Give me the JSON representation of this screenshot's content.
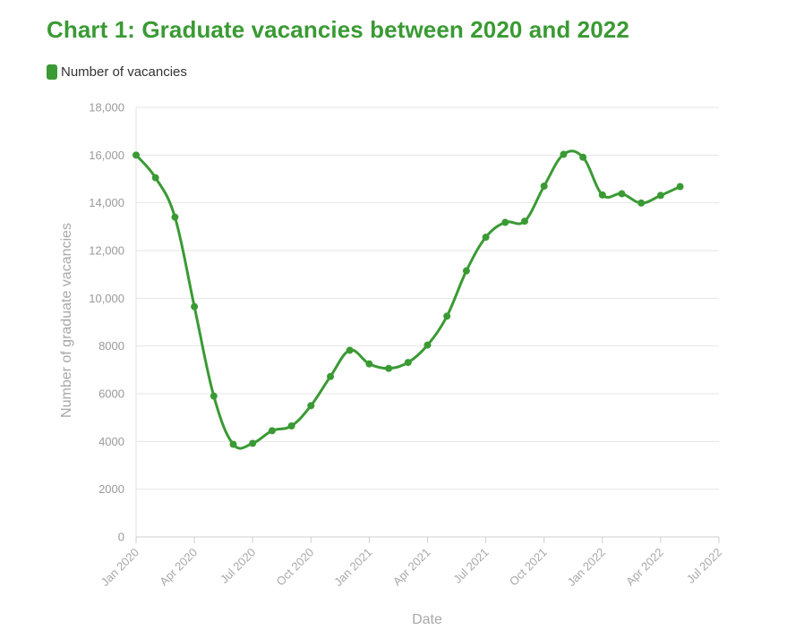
{
  "chart_data": {
    "type": "line",
    "title": "Chart 1: Graduate vacancies between 2020 and 2022",
    "xlabel": "Date",
    "ylabel": "Number of graduate vacancies",
    "ylim": [
      0,
      18000
    ],
    "xlim": [
      "2020-01",
      "2022-07"
    ],
    "grid": true,
    "legend_position": "top-left",
    "series": [
      {
        "name": "Number of vacancies",
        "color": "#3a9a34",
        "x": [
          "2020-01",
          "2020-02",
          "2020-03",
          "2020-04",
          "2020-05",
          "2020-06",
          "2020-07",
          "2020-08",
          "2020-09",
          "2020-10",
          "2020-11",
          "2020-12",
          "2021-01",
          "2021-02",
          "2021-03",
          "2021-04",
          "2021-05",
          "2021-06",
          "2021-07",
          "2021-08",
          "2021-09",
          "2021-10",
          "2021-11",
          "2021-12",
          "2022-01",
          "2022-02",
          "2022-03",
          "2022-04",
          "2022-05"
        ],
        "values": [
          16000,
          15050,
          13400,
          9650,
          5900,
          3880,
          3920,
          4450,
          4650,
          5500,
          6720,
          7820,
          7250,
          7060,
          7310,
          8040,
          9250,
          11150,
          12560,
          13180,
          13230,
          14700,
          16030,
          15910,
          14330,
          14380,
          13990,
          14310,
          14680
        ]
      }
    ],
    "y_ticks": [
      "0",
      "2000",
      "4000",
      "6000",
      "8000",
      "10,000",
      "12,000",
      "14,000",
      "16,000",
      "18,000"
    ],
    "y_tick_values": [
      0,
      2000,
      4000,
      6000,
      8000,
      10000,
      12000,
      14000,
      16000,
      18000
    ],
    "x_ticks": [
      "Jan 2020",
      "Apr 2020",
      "Jul 2020",
      "Oct 2020",
      "Jan 2021",
      "Apr 2021",
      "Jul 2021",
      "Oct 2021",
      "Jan 2022",
      "Apr 2022",
      "Jul 2022"
    ],
    "x_tick_values": [
      "2020-01",
      "2020-04",
      "2020-07",
      "2020-10",
      "2021-01",
      "2021-04",
      "2021-07",
      "2021-10",
      "2022-01",
      "2022-04",
      "2022-07"
    ]
  }
}
